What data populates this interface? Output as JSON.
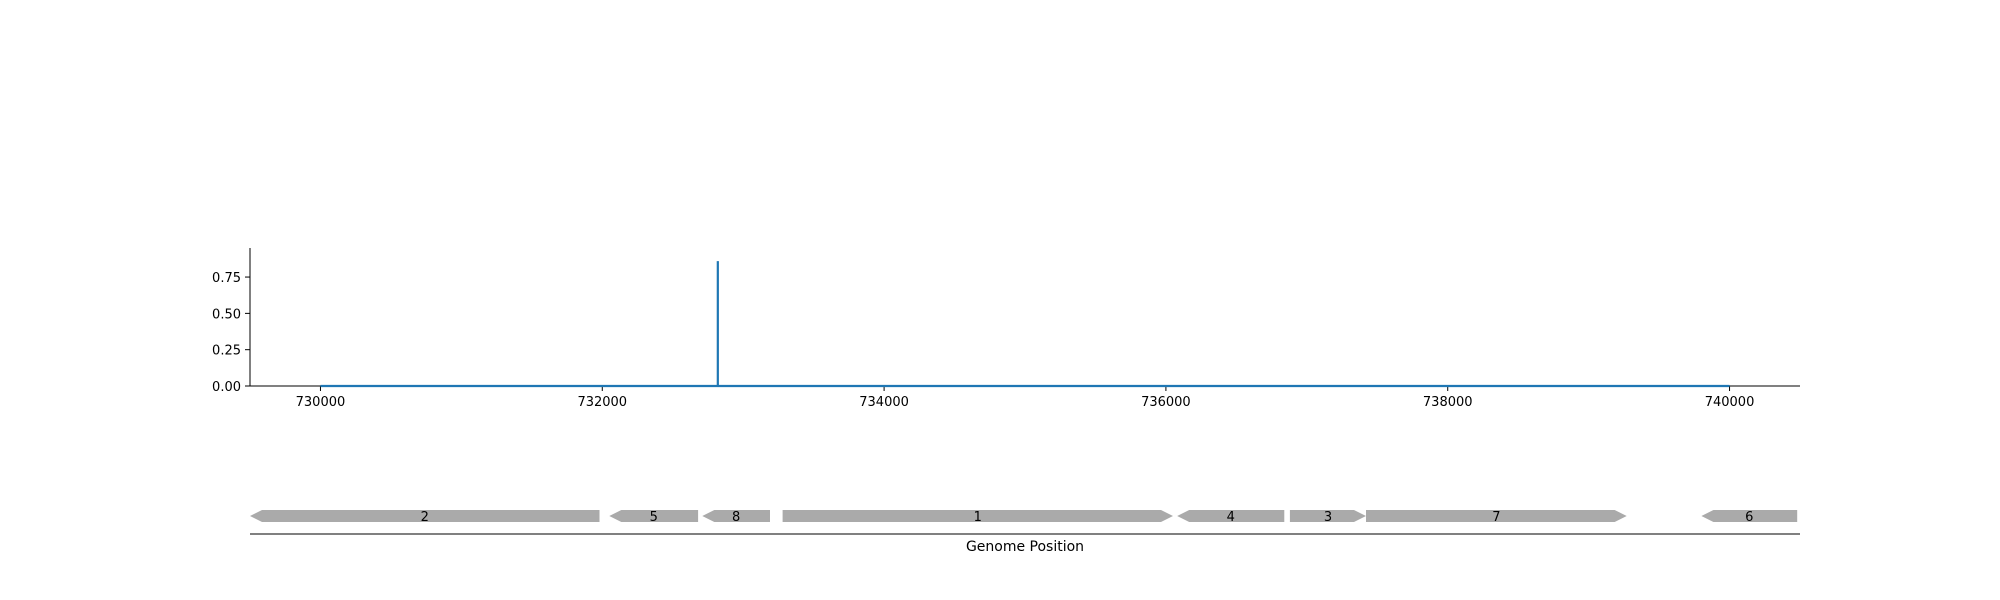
{
  "chart_data": [
    {
      "type": "line",
      "title": "",
      "xlabel": "",
      "ylabel": "",
      "xlim": [
        729500,
        740500
      ],
      "ylim": [
        0,
        0.95
      ],
      "x_ticks": [
        730000,
        732000,
        734000,
        736000,
        738000,
        740000
      ],
      "x_tick_labels": [
        "730000",
        "732000",
        "734000",
        "736000",
        "738000",
        "740000"
      ],
      "y_ticks": [
        0,
        0.25,
        0.5,
        0.75
      ],
      "y_tick_labels": [
        "0.00",
        "0.25",
        "0.50",
        "0.75"
      ],
      "grid": false,
      "series": [
        {
          "color": "#1f77b4",
          "x": [
            730000,
            732820,
            732820,
            732820,
            740000
          ],
          "y": [
            0,
            0,
            0.86,
            0,
            0
          ]
        }
      ]
    },
    {
      "type": "gene-track",
      "xlabel": "Genome Position",
      "color": "#aaaaaa",
      "genes": [
        {
          "label": "2",
          "start": 729500,
          "end": 731980,
          "strand": "-"
        },
        {
          "label": "5",
          "start": 732050,
          "end": 732680,
          "strand": "-"
        },
        {
          "label": "8",
          "start": 732710,
          "end": 733190,
          "strand": "-"
        },
        {
          "label": "1",
          "start": 733280,
          "end": 736050,
          "strand": "+"
        },
        {
          "label": "4",
          "start": 736080,
          "end": 736840,
          "strand": "-"
        },
        {
          "label": "3",
          "start": 736880,
          "end": 737420,
          "strand": "+"
        },
        {
          "label": "7",
          "start": 737420,
          "end": 739270,
          "strand": "+"
        },
        {
          "label": "6",
          "start": 739800,
          "end": 740480,
          "strand": "-"
        }
      ]
    }
  ]
}
